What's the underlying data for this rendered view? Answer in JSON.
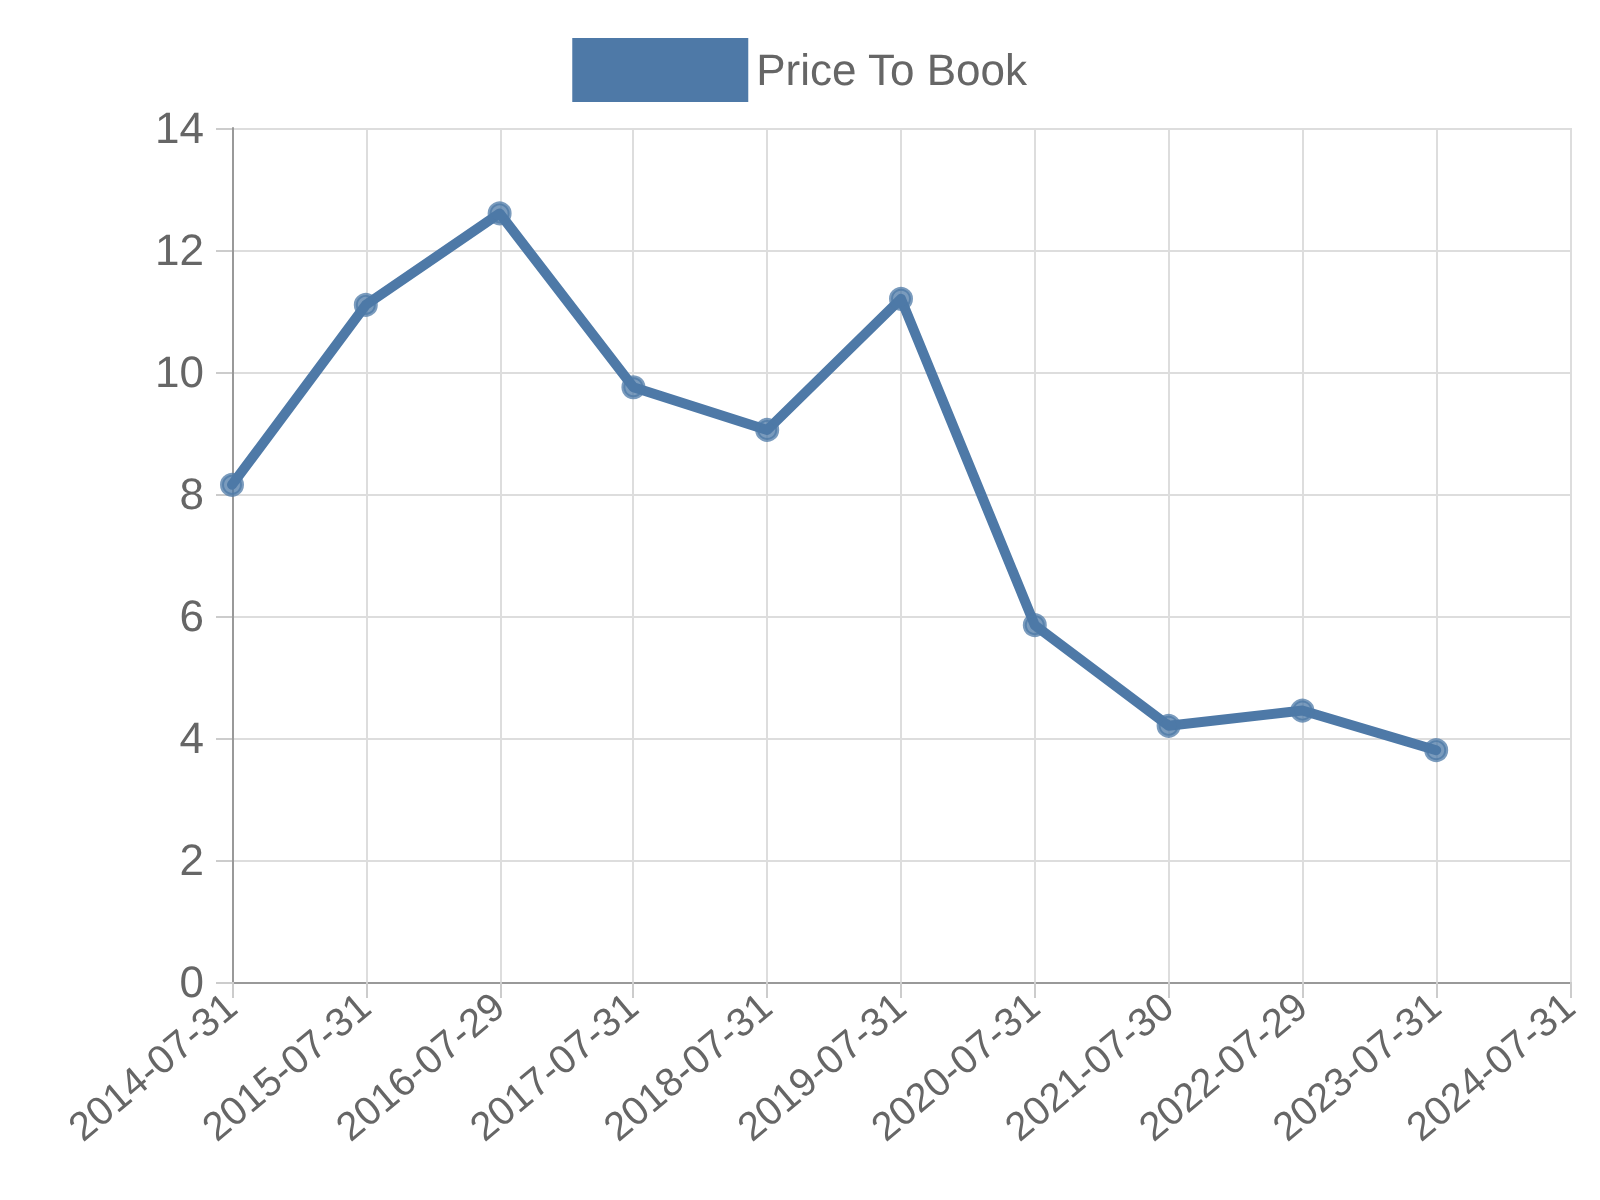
{
  "chart_data": {
    "type": "line",
    "categories": [
      "2014-07-31",
      "2015-07-31",
      "2016-07-29",
      "2017-07-31",
      "2018-07-31",
      "2019-07-31",
      "2020-07-31",
      "2021-07-30",
      "2022-07-29",
      "2023-07-31",
      "2024-07-31"
    ],
    "series": [
      {
        "name": "Price To Book",
        "color": "#4e79a7",
        "values": [
          8.15,
          11.1,
          12.6,
          9.75,
          9.05,
          11.2,
          5.85,
          4.2,
          4.45,
          3.8,
          null
        ]
      }
    ],
    "ylim": [
      0,
      14
    ],
    "yticks": [
      0,
      2,
      4,
      6,
      8,
      10,
      12,
      14
    ],
    "grid": true,
    "legend": "top",
    "marker": "circle",
    "line_style": "solid"
  }
}
